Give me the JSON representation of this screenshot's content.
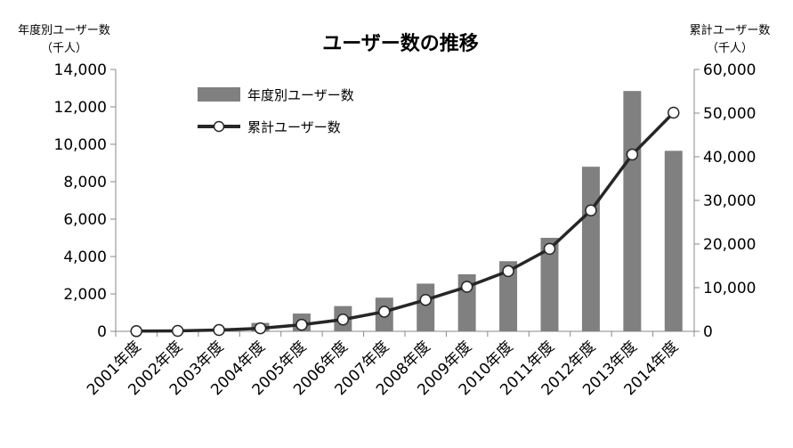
{
  "chart_data": {
    "type": "bar",
    "title": "ユーザー数の推移",
    "categories": [
      "2001年度",
      "2002年度",
      "2003年度",
      "2004年度",
      "2005年度",
      "2006年度",
      "2007年度",
      "2008年度",
      "2009年度",
      "2010年度",
      "2011年度",
      "2012年度",
      "2013年度",
      "2014年度"
    ],
    "series": [
      {
        "name": "年度別ユーザー数",
        "type": "bar",
        "axis": "left",
        "color": "#808080",
        "values": [
          20,
          40,
          100,
          450,
          950,
          1350,
          1800,
          2550,
          3050,
          3750,
          5000,
          8800,
          12850,
          9650
        ]
      },
      {
        "name": "累計ユーザー数",
        "type": "line",
        "axis": "right",
        "color": "#262626",
        "marker": "circle-white",
        "values": [
          40,
          100,
          300,
          700,
          1500,
          2700,
          4500,
          7200,
          10200,
          13800,
          18900,
          27700,
          40500,
          50100
        ]
      }
    ],
    "y_left": {
      "label_line1": "年度別ユーザー数",
      "label_line2": "（千人）",
      "ylim": [
        0,
        14000
      ],
      "ticks": [
        "0",
        "2,000",
        "4,000",
        "6,000",
        "8,000",
        "10,000",
        "12,000",
        "14,000"
      ]
    },
    "y_right": {
      "label_line1": "累計ユーザー数",
      "label_line2": "（千人）",
      "ylim": [
        0,
        60000
      ],
      "ticks": [
        "0",
        "10,000",
        "20,000",
        "30,000",
        "40,000",
        "50,000",
        "60,000"
      ]
    },
    "grid": false,
    "legend_position": "top-left inside"
  }
}
